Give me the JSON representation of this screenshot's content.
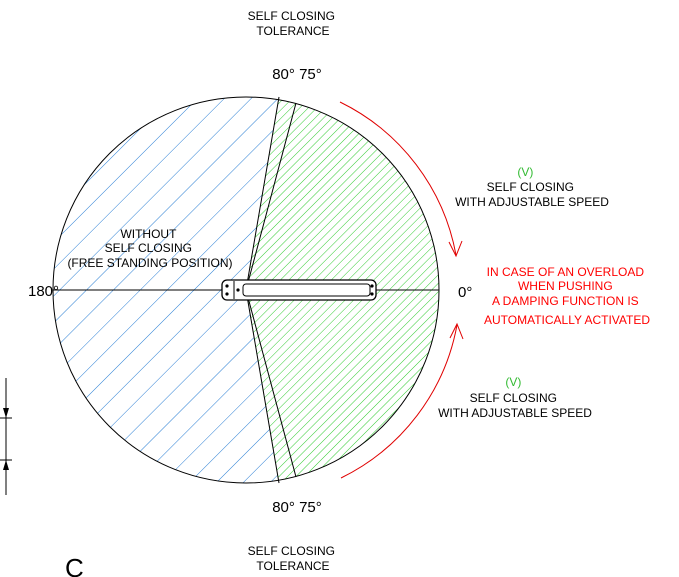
{
  "colors": {
    "blue_hatch": "#2a7fd4",
    "green_hatch": "#33cc33",
    "arrow_red": "#e00000",
    "warning_red": "#ff0000",
    "line": "#000000"
  },
  "labels": {
    "top_tolerance": [
      "SELF CLOSING",
      "TOLERANCE"
    ],
    "bottom_tolerance": [
      "SELF CLOSING",
      "TOLERANCE"
    ],
    "top_angles": "80° 75°",
    "bottom_angles": "80° 75°",
    "left_angle": "180°",
    "right_angle": "0°",
    "without_self_closing": [
      "WITHOUT",
      "SELF CLOSING",
      "(FREE  STANDING POSITION)"
    ],
    "upper_zone": {
      "mark": "(V)",
      "lines": [
        "SELF CLOSING",
        "WITH ADJUSTABLE SPEED"
      ]
    },
    "lower_zone": {
      "mark": "(V)",
      "lines": [
        "SELF CLOSING",
        "WITH ADJUSTABLE SPEED"
      ]
    },
    "overload_warning": [
      "IN CASE OF AN OVERLOAD",
      "WHEN  PUSHING",
      "A DAMPING FUNCTION IS",
      "AUTOMATICALLY ACTIVATED"
    ],
    "corner_glyph": "C"
  }
}
